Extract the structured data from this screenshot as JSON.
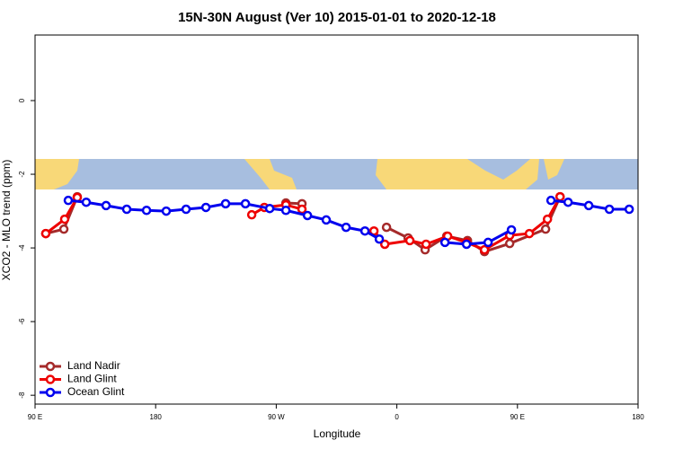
{
  "chart_data": {
    "type": "line",
    "title": "15N-30N August (Ver 10)   2015-01-01 to 2020-12-18",
    "x_label": "Longitude",
    "y_label": "XCO2 - MLO trend (ppm)",
    "xlim": [
      90,
      540
    ],
    "ylim": [
      -8.24,
      1.78
    ],
    "xticks": [
      {
        "value": 90,
        "label": "90 E"
      },
      180,
      {
        "value": 270,
        "label": "90 W"
      },
      {
        "value": 360,
        "label": "0"
      },
      {
        "value": 450,
        "label": "90 E"
      },
      {
        "value": 540,
        "label": "180"
      }
    ],
    "yticks": [
      0,
      -2,
      -4,
      -6,
      -8
    ],
    "legend": "bottom-left",
    "series": [
      {
        "name": "Land Nadir",
        "color": "#a52a2a",
        "x": [
          98.0,
          111.5,
          121.5,
          null,
          277.2,
          289.2,
          null,
          352.3,
          368.4,
          381.1,
          397.2,
          412.7,
          425.4,
          444.2,
          471.0,
          481.8
        ],
        "values": [
          -3.61,
          -3.49,
          -2.61,
          null,
          -2.78,
          -2.8,
          null,
          -3.44,
          -3.73,
          -4.05,
          -3.68,
          -3.8,
          -4.1,
          -3.88,
          -3.49,
          -2.61
        ]
      },
      {
        "name": "Land Glint",
        "color": "#ee0000",
        "x": [
          98.0,
          112.1,
          121.5,
          null,
          251.7,
          261.1,
          277.2,
          289.2,
          null,
          342.9,
          351.0,
          369.7,
          381.8,
          397.9,
          412.0,
          425.4,
          444.2,
          458.9,
          472.4,
          481.8
        ],
        "values": [
          -3.61,
          -3.22,
          -2.63,
          null,
          -3.1,
          -2.9,
          -2.83,
          -2.95,
          null,
          -3.54,
          -3.9,
          -3.8,
          -3.9,
          -3.68,
          -3.85,
          -4.05,
          -3.66,
          -3.61,
          -3.22,
          -2.61
        ]
      },
      {
        "name": "Ocean Glint",
        "color": "#0000ee",
        "x": [
          114.8,
          128.2,
          143.0,
          158.4,
          173.2,
          187.9,
          202.7,
          217.5,
          232.2,
          247.0,
          265.1,
          277.2,
          293.3,
          307.3,
          322.1,
          336.2,
          346.9,
          null,
          395.9,
          412.0,
          428.1,
          445.5,
          null,
          475.0,
          487.8,
          503.2,
          518.6,
          533.4
        ],
        "values": [
          -2.71,
          -2.76,
          -2.85,
          -2.95,
          -2.98,
          -3.0,
          -2.95,
          -2.9,
          -2.8,
          -2.8,
          -2.93,
          -2.98,
          -3.12,
          -3.24,
          -3.44,
          -3.54,
          -3.76,
          null,
          -3.85,
          -3.9,
          -3.85,
          -3.51,
          null,
          -2.71,
          -2.76,
          -2.85,
          -2.95,
          -2.95
        ]
      }
    ]
  }
}
